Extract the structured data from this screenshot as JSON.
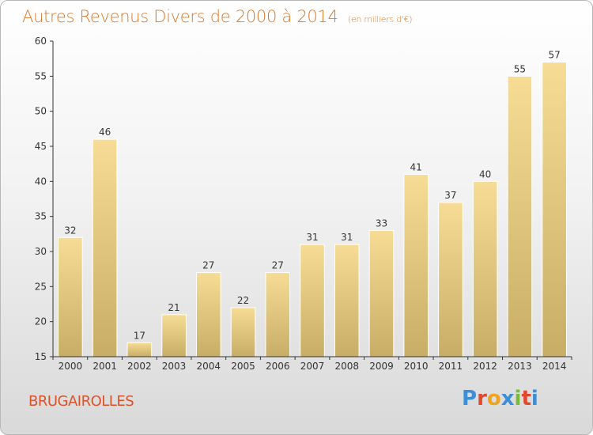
{
  "title": {
    "main": "Autres Revenus Divers de 2000 à 2014",
    "unit": "(en milliers d'€)"
  },
  "commune": "BRUGAIROLLES",
  "logo": {
    "text": "Proxiti",
    "letter_colors": [
      "#3a8fd8",
      "#e0492e",
      "#f0a31c",
      "#3a8fd8",
      "#7cb83a",
      "#e0492e",
      "#3a8fd8"
    ]
  },
  "colors": {
    "title": "#d97a2b",
    "commune": "#d9532b",
    "bar_top": "#f6dc95",
    "bar_bottom": "#c8ad66"
  },
  "chart_data": {
    "type": "bar",
    "title": "Autres Revenus Divers de 2000 à 2014",
    "xlabel": "",
    "ylabel": "",
    "categories": [
      "2000",
      "2001",
      "2002",
      "2003",
      "2004",
      "2005",
      "2006",
      "2007",
      "2008",
      "2009",
      "2010",
      "2011",
      "2012",
      "2013",
      "2014"
    ],
    "values": [
      32,
      46,
      17,
      21,
      27,
      22,
      27,
      31,
      31,
      33,
      41,
      37,
      40,
      55,
      57
    ],
    "ylim": [
      15,
      60
    ],
    "yticks": [
      15,
      20,
      25,
      30,
      35,
      40,
      45,
      50,
      55,
      60
    ],
    "grid": false,
    "data_labels": true
  }
}
